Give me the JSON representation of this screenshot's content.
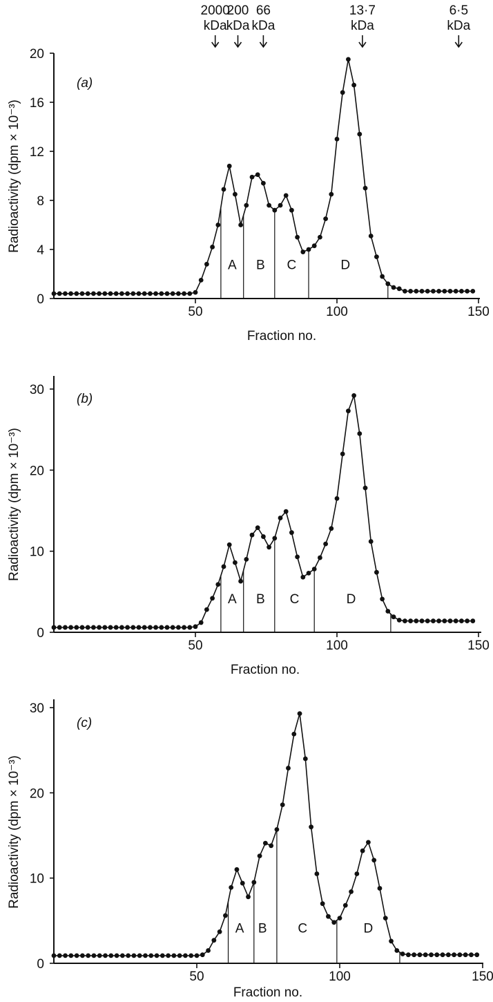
{
  "markers": [
    {
      "line1": "2000",
      "line2": "kDa",
      "x": 57
    },
    {
      "line1": "200",
      "line2": "kDa",
      "x": 65
    },
    {
      "line1": "66",
      "line2": "kDa",
      "x": 74
    },
    {
      "line1": "13·7",
      "line2": "kDa",
      "x": 109
    },
    {
      "line1": "6·5",
      "line2": "kDa",
      "x": 143
    }
  ],
  "chart_data": [
    {
      "type": "line",
      "panel_label": "(a)",
      "xlabel": "Fraction no.",
      "ylabel": "Radioactivity (dpm × 10⁻³)",
      "xlim": [
        0,
        150
      ],
      "ylim": [
        0,
        20
      ],
      "xticks": [
        50,
        100,
        150
      ],
      "yticks": [
        0,
        4,
        8,
        12,
        16,
        20
      ],
      "x": [
        0,
        2,
        4,
        6,
        8,
        10,
        12,
        14,
        16,
        18,
        20,
        22,
        24,
        26,
        28,
        30,
        32,
        34,
        36,
        38,
        40,
        42,
        44,
        46,
        48,
        50,
        52,
        54,
        56,
        58,
        60,
        62,
        64,
        66,
        68,
        70,
        72,
        74,
        76,
        78,
        80,
        82,
        84,
        86,
        88,
        90,
        92,
        94,
        96,
        98,
        100,
        102,
        104,
        106,
        108,
        110,
        112,
        114,
        116,
        118,
        120,
        122,
        124,
        126,
        128,
        130,
        132,
        134,
        136,
        138,
        140,
        142,
        144,
        146,
        148
      ],
      "values": [
        0.4,
        0.4,
        0.4,
        0.4,
        0.4,
        0.4,
        0.4,
        0.4,
        0.4,
        0.4,
        0.4,
        0.4,
        0.4,
        0.4,
        0.4,
        0.4,
        0.4,
        0.4,
        0.4,
        0.4,
        0.4,
        0.4,
        0.4,
        0.4,
        0.4,
        0.5,
        1.5,
        2.8,
        4.2,
        6.0,
        8.9,
        10.8,
        8.5,
        6.0,
        7.6,
        9.9,
        10.1,
        9.4,
        7.6,
        7.2,
        7.6,
        8.4,
        7.2,
        5.0,
        3.8,
        4.0,
        4.3,
        5.0,
        6.5,
        8.5,
        13.0,
        16.8,
        19.5,
        17.4,
        13.4,
        9.0,
        5.1,
        3.4,
        1.8,
        1.2,
        0.9,
        0.8,
        0.6,
        0.6,
        0.6,
        0.6,
        0.6,
        0.6,
        0.6,
        0.6,
        0.6,
        0.6,
        0.6,
        0.6,
        0.6
      ],
      "dividers": [
        59,
        67,
        78,
        90,
        118
      ],
      "regions": [
        {
          "label": "A",
          "x": 63
        },
        {
          "label": "B",
          "x": 73
        },
        {
          "label": "C",
          "x": 84
        },
        {
          "label": "D",
          "x": 103
        }
      ],
      "grid": false
    },
    {
      "type": "line",
      "panel_label": "(b)",
      "xlabel": "Fraction no.",
      "ylabel": "Radioactivity (dpm × 10⁻³)",
      "xlim": [
        0,
        150
      ],
      "ylim": [
        0,
        30
      ],
      "xticks": [
        50,
        100,
        150
      ],
      "yticks": [
        0,
        10,
        20,
        30
      ],
      "x": [
        0,
        2,
        4,
        6,
        8,
        10,
        12,
        14,
        16,
        18,
        20,
        22,
        24,
        26,
        28,
        30,
        32,
        34,
        36,
        38,
        40,
        42,
        44,
        46,
        48,
        50,
        52,
        54,
        56,
        58,
        60,
        62,
        64,
        66,
        68,
        70,
        72,
        74,
        76,
        78,
        80,
        82,
        84,
        86,
        88,
        90,
        92,
        94,
        96,
        98,
        100,
        102,
        104,
        106,
        108,
        110,
        112,
        114,
        116,
        118,
        120,
        122,
        124,
        126,
        128,
        130,
        132,
        134,
        136,
        138,
        140,
        142,
        144,
        146,
        148
      ],
      "values": [
        0.6,
        0.6,
        0.6,
        0.6,
        0.6,
        0.6,
        0.6,
        0.6,
        0.6,
        0.6,
        0.6,
        0.6,
        0.6,
        0.6,
        0.6,
        0.6,
        0.6,
        0.6,
        0.6,
        0.6,
        0.6,
        0.6,
        0.6,
        0.6,
        0.6,
        0.7,
        1.2,
        2.8,
        4.2,
        5.9,
        8.1,
        10.8,
        8.6,
        6.3,
        9.0,
        12.0,
        12.9,
        11.8,
        10.5,
        11.6,
        14.1,
        14.9,
        12.3,
        9.3,
        6.8,
        7.3,
        7.8,
        9.2,
        10.9,
        12.8,
        16.5,
        22.0,
        27.3,
        29.2,
        24.5,
        17.8,
        11.2,
        7.4,
        4.1,
        2.6,
        1.9,
        1.5,
        1.4,
        1.4,
        1.4,
        1.4,
        1.4,
        1.4,
        1.4,
        1.4,
        1.4,
        1.4,
        1.4,
        1.4,
        1.4
      ],
      "dividers": [
        59,
        67,
        78,
        92,
        119
      ],
      "regions": [
        {
          "label": "A",
          "x": 63
        },
        {
          "label": "B",
          "x": 73
        },
        {
          "label": "C",
          "x": 85
        },
        {
          "label": "D",
          "x": 105
        }
      ],
      "grid": false
    },
    {
      "type": "line",
      "panel_label": "(c)",
      "xlabel": "Fraction no.",
      "ylabel": "Radioactivity (dpm × 10⁻³)",
      "xlim": [
        0,
        150
      ],
      "ylim": [
        0,
        30
      ],
      "xticks": [
        50,
        100,
        150
      ],
      "yticks": [
        0,
        10,
        20,
        30
      ],
      "x": [
        0,
        2,
        4,
        6,
        8,
        10,
        12,
        14,
        16,
        18,
        20,
        22,
        24,
        26,
        28,
        30,
        32,
        34,
        36,
        38,
        40,
        42,
        44,
        46,
        48,
        50,
        52,
        54,
        56,
        58,
        60,
        62,
        64,
        66,
        68,
        70,
        72,
        74,
        76,
        78,
        80,
        82,
        84,
        86,
        88,
        90,
        92,
        94,
        96,
        98,
        100,
        102,
        104,
        106,
        108,
        110,
        112,
        114,
        116,
        118,
        120,
        122,
        124,
        126,
        128,
        130,
        132,
        134,
        136,
        138,
        140,
        142,
        144,
        146,
        148
      ],
      "values": [
        0.9,
        0.9,
        0.9,
        0.9,
        0.9,
        0.9,
        0.9,
        0.9,
        0.9,
        0.9,
        0.9,
        0.9,
        0.9,
        0.9,
        0.9,
        0.9,
        0.9,
        0.9,
        0.9,
        0.9,
        0.9,
        0.9,
        0.9,
        0.9,
        0.9,
        0.9,
        1.0,
        1.5,
        2.7,
        3.7,
        5.6,
        8.9,
        11.0,
        9.4,
        7.8,
        9.5,
        12.6,
        14.1,
        13.8,
        15.7,
        18.6,
        22.9,
        26.9,
        29.3,
        24.0,
        16.0,
        10.5,
        7.0,
        5.5,
        4.8,
        5.3,
        6.8,
        8.4,
        10.5,
        13.2,
        14.2,
        12.1,
        8.8,
        5.3,
        2.6,
        1.5,
        1.1,
        1.0,
        1.0,
        1.0,
        1.0,
        1.0,
        1.0,
        1.0,
        1.0,
        1.0,
        1.0,
        1.0,
        1.0,
        1.0
      ],
      "dividers": [
        61,
        70,
        78,
        99,
        121
      ],
      "regions": [
        {
          "label": "A",
          "x": 65
        },
        {
          "label": "B",
          "x": 73
        },
        {
          "label": "C",
          "x": 87
        },
        {
          "label": "D",
          "x": 110
        }
      ],
      "grid": false
    }
  ]
}
